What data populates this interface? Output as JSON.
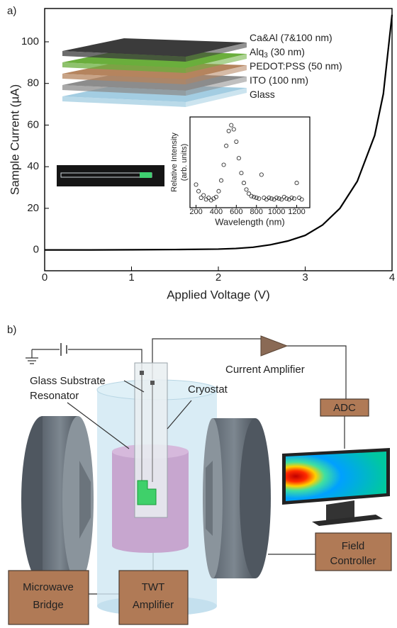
{
  "panel_labels": [
    "a)",
    "b)"
  ],
  "chart_data": [
    {
      "type": "line",
      "xlabel": "Applied Voltage (V)",
      "ylabel": "Sample Current (µA)",
      "x": [
        0,
        0.5,
        1,
        1.5,
        2,
        2.2,
        2.4,
        2.6,
        2.8,
        3.0,
        3.2,
        3.4,
        3.6,
        3.8,
        3.9,
        4.0
      ],
      "series": [
        {
          "color": "#000000",
          "values": [
            0,
            0,
            0.1,
            0.2,
            0.4,
            0.7,
            1.3,
            2.5,
            4.3,
            7,
            12,
            20,
            33,
            55,
            75,
            113
          ]
        }
      ],
      "xlim": [
        0,
        4
      ],
      "ylim": [
        -10,
        116
      ],
      "xticks": [
        0,
        1,
        2,
        3,
        4
      ],
      "yticks": [
        0,
        20,
        40,
        60,
        80,
        100
      ]
    },
    {
      "type": "scatter",
      "xlabel": "Wavelength (nm)",
      "ylabel": [
        "Relative Intensity",
        "(arb. units)"
      ],
      "x": [
        200,
        225,
        250,
        275,
        300,
        325,
        350,
        375,
        400,
        425,
        450,
        475,
        500,
        525,
        550,
        575,
        600,
        625,
        650,
        675,
        700,
        725,
        750,
        775,
        800,
        825,
        850,
        875,
        900,
        925,
        950,
        975,
        1000,
        1025,
        1050,
        1075,
        1100,
        1125,
        1150,
        1175,
        1200,
        1225,
        1250
      ],
      "series": [
        {
          "color": "#333333",
          "values": [
            0.28,
            0.2,
            0.12,
            0.15,
            0.1,
            0.12,
            0.09,
            0.11,
            0.13,
            0.2,
            0.33,
            0.52,
            0.75,
            0.93,
            1.0,
            0.95,
            0.8,
            0.6,
            0.42,
            0.3,
            0.22,
            0.17,
            0.14,
            0.13,
            0.12,
            0.11,
            0.4,
            0.12,
            0.1,
            0.12,
            0.11,
            0.1,
            0.12,
            0.11,
            0.1,
            0.13,
            0.11,
            0.1,
            0.12,
            0.11,
            0.3,
            0.12,
            0.1
          ]
        }
      ],
      "xlim": [
        140,
        1330
      ],
      "ylim": [
        0,
        1.1
      ],
      "xticks": [
        200,
        400,
        600,
        800,
        1000,
        1200
      ]
    }
  ],
  "device_layers": [
    {
      "label": [
        "Ca&Al (7&100 nm)"
      ],
      "color": "#3b3b3b"
    },
    {
      "label": [
        "Alq",
        "3",
        " (30 nm)"
      ],
      "color": "#6aae3c"
    },
    {
      "label": [
        "PEDOT:PSS (50 nm)"
      ],
      "color": "#b5845e"
    },
    {
      "label": [
        "ITO (100 nm)"
      ],
      "color": "#8c8c8c"
    },
    {
      "label": [
        "Glass"
      ],
      "color": "#a3cde2"
    }
  ],
  "diagram": {
    "glass_substrate": "Glass Substrate",
    "resonator": "Resonator",
    "cryostat": "Cryostat",
    "current_amplifier": "Current Amplifier",
    "adc": "ADC",
    "field_controller": [
      "Field",
      "Controller"
    ],
    "microwave_bridge": [
      "Microwave",
      "Bridge"
    ],
    "twt_amplifier": [
      "TWT",
      "Amplifier"
    ]
  }
}
